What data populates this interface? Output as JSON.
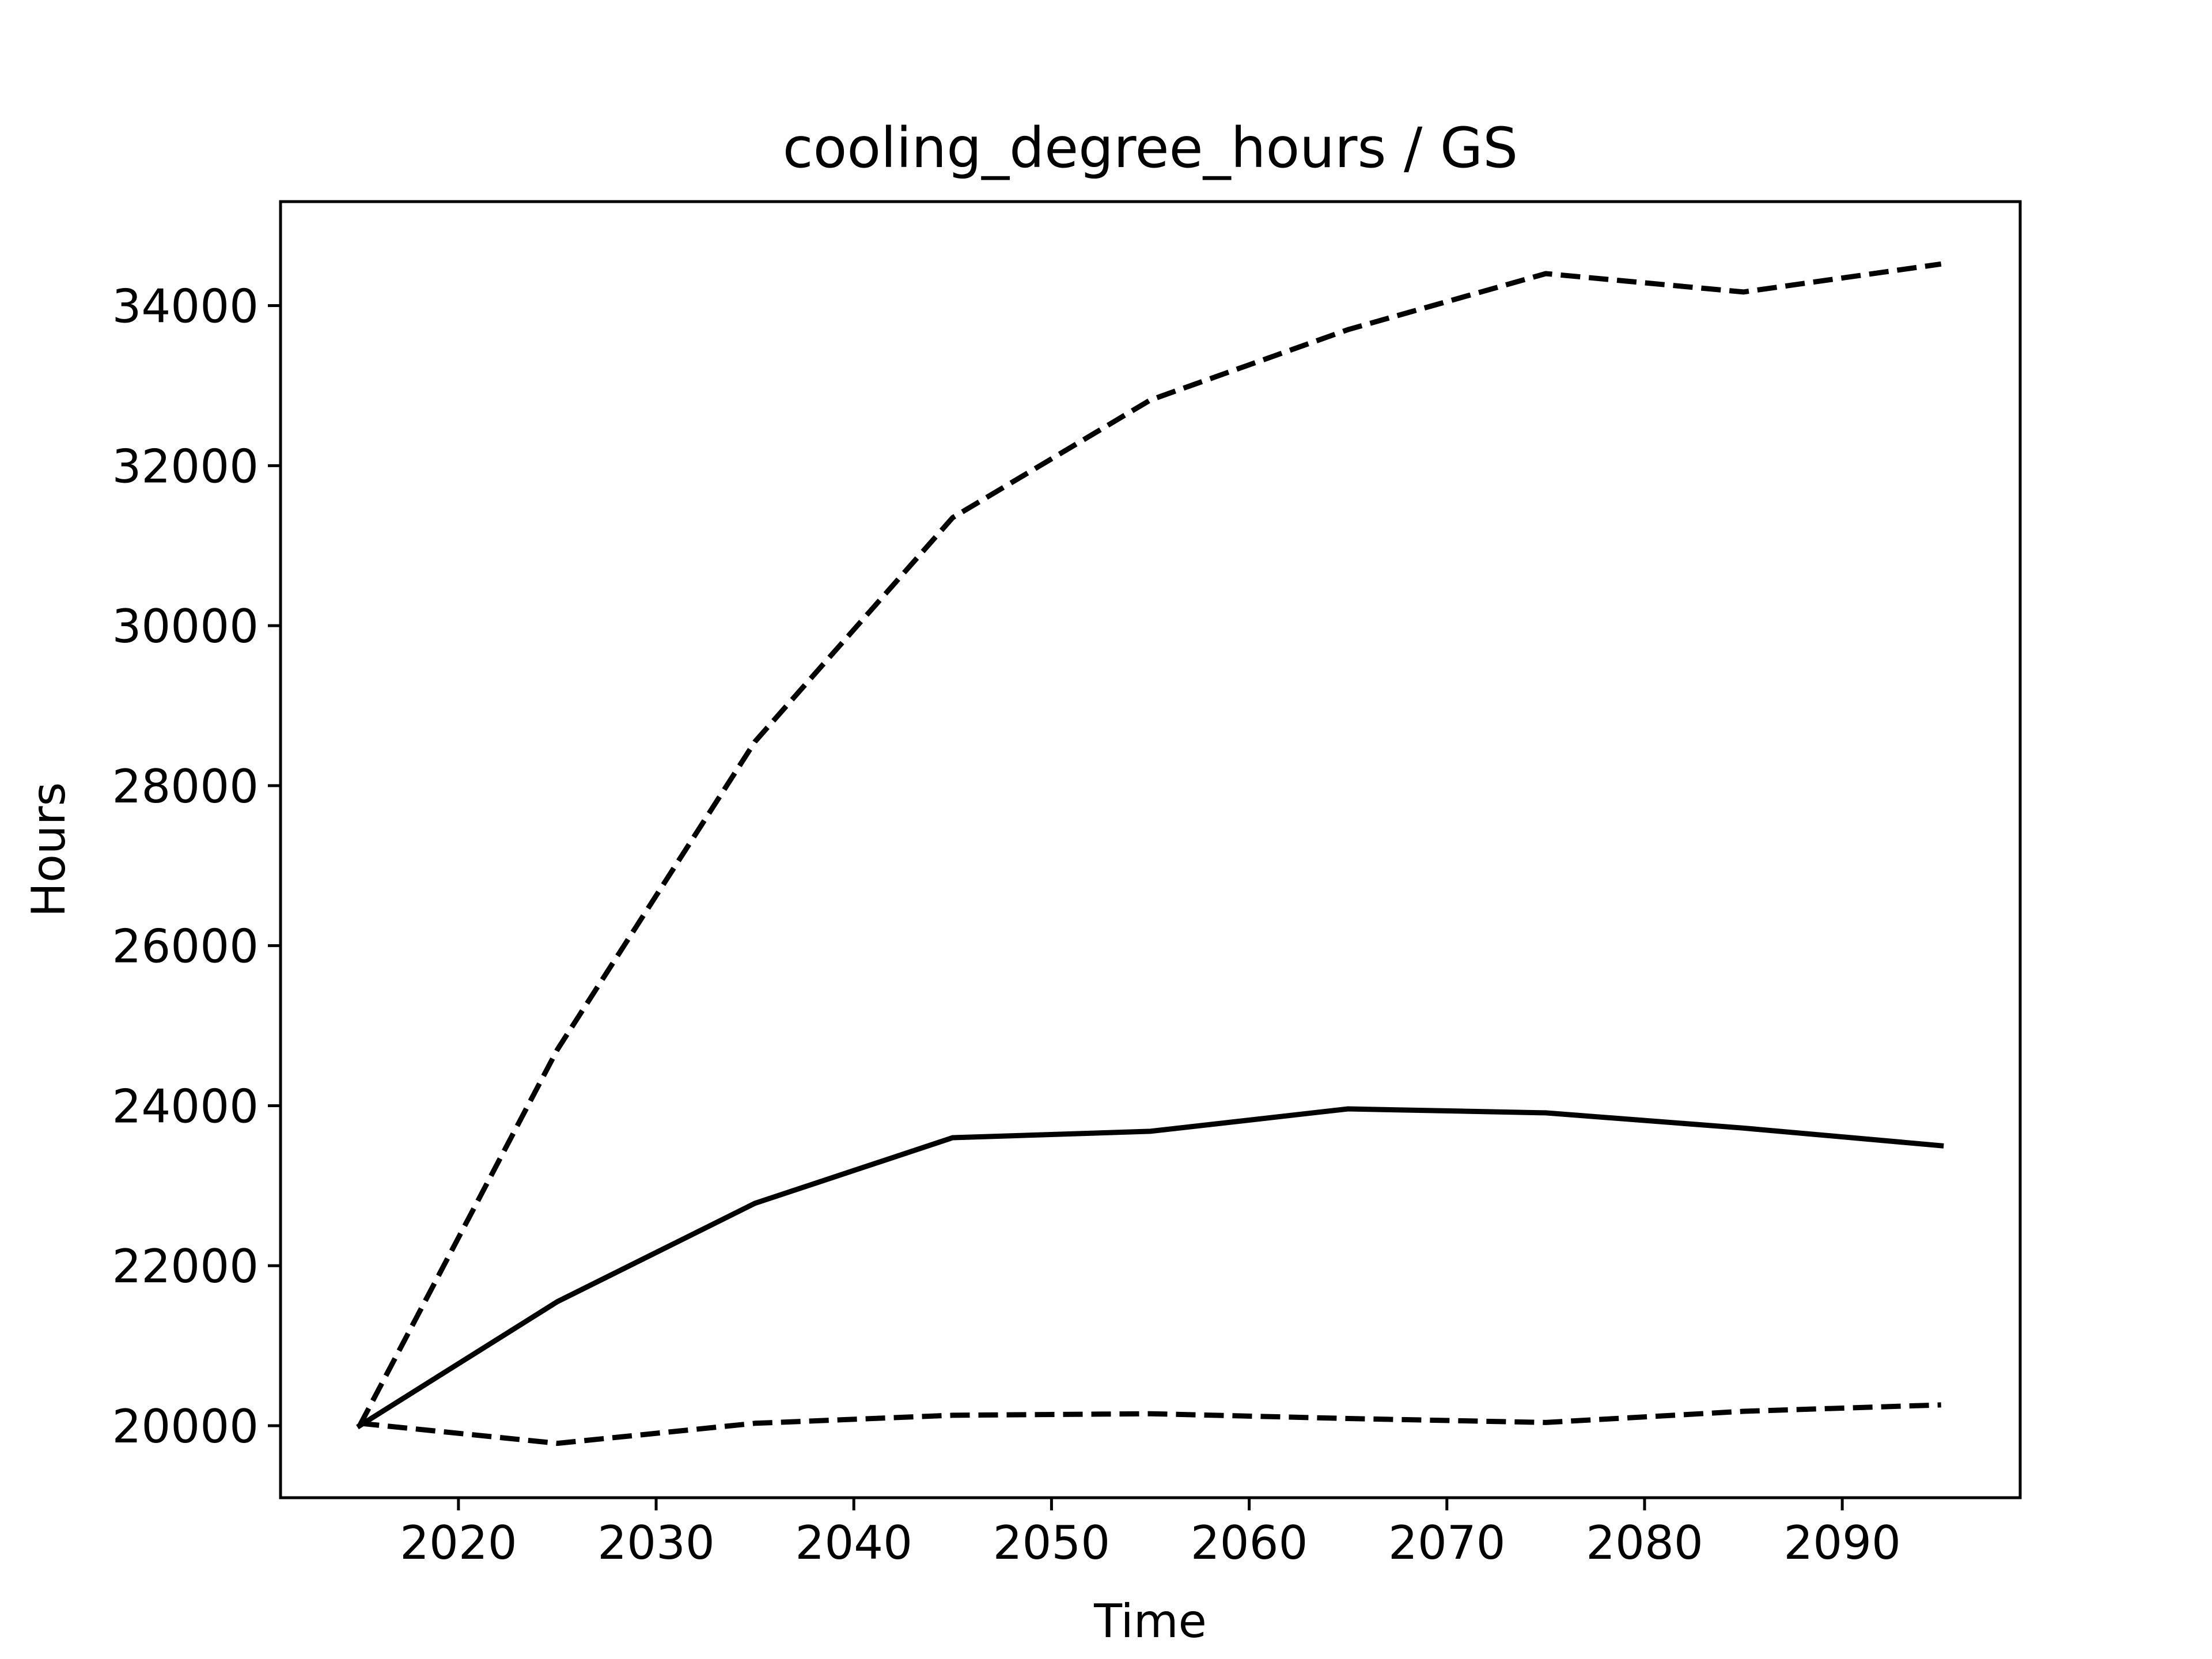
{
  "chart_data": {
    "type": "line",
    "title": "cooling_degree_hours / GS",
    "xlabel": "Time",
    "ylabel": "Hours",
    "xlim": [
      2011,
      2099
    ],
    "ylim": [
      19100,
      35300
    ],
    "grid": false,
    "x_ticks": [
      2020,
      2030,
      2040,
      2050,
      2060,
      2070,
      2080,
      2090
    ],
    "y_ticks": [
      20000,
      22000,
      24000,
      26000,
      28000,
      30000,
      32000,
      34000
    ],
    "x": [
      2015,
      2025,
      2035,
      2045,
      2055,
      2065,
      2075,
      2085,
      2095
    ],
    "series": [
      {
        "style": "dashed",
        "color": "#000000",
        "values": [
          20000,
          24700,
          28550,
          31350,
          32820,
          33700,
          34400,
          34170,
          34520
        ]
      },
      {
        "style": "solid",
        "color": "#000000",
        "values": [
          20000,
          21550,
          22780,
          23600,
          23680,
          23960,
          23910,
          23720,
          23500
        ]
      },
      {
        "style": "dashed",
        "color": "#000000",
        "values": [
          20030,
          19780,
          20030,
          20130,
          20150,
          20090,
          20040,
          20180,
          20260
        ]
      }
    ]
  }
}
